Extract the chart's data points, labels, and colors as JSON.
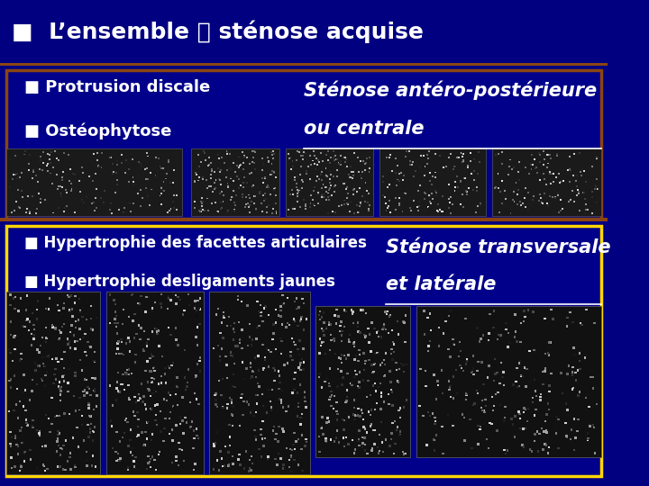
{
  "bg_color": "#000080",
  "outer_border_color": "#8B4513",
  "inner_box1_border_color": "#8B4513",
  "inner_box2_border_color": "#FFD700",
  "title_text": "■  L’ensemble Ⓢ sténose acquise",
  "title_color": "#FFFFFF",
  "title_fontsize": 18,
  "bullet_color": "#FFFFFF",
  "bullet1_text": "■ Protrusion discale",
  "bullet2_text": "■ Ostéophytose",
  "bullet3_text": "■ Hypertrophie des facettes articulaires",
  "bullet4_text": "■ Hypertrophie desligaments jaunes",
  "stenose1_line1": "Sténose antéro-postérieure",
  "stenose1_line2": "ou centrale",
  "stenose2_line1": "Sténose transversale",
  "stenose2_line2": "et latérale",
  "stenose_color": "#FFFFFF",
  "stenose_fontsize": 15,
  "divider_color": "#8B4513",
  "image_bg": "#2a2a2a"
}
